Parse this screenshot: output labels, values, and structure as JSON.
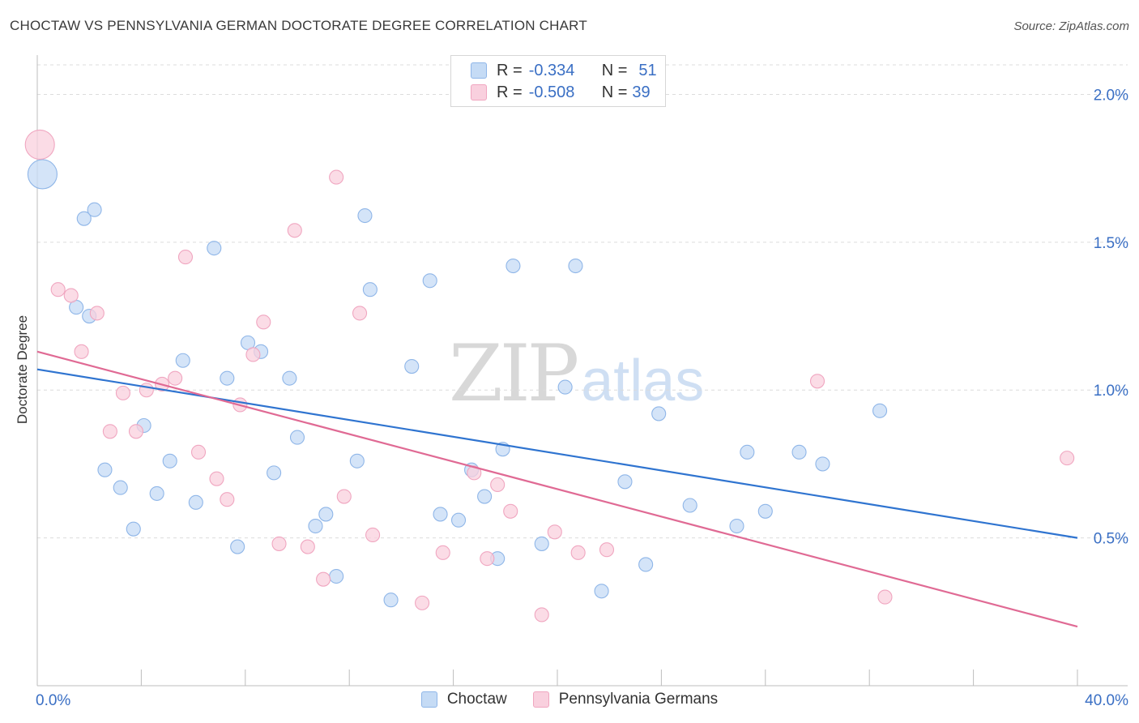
{
  "title": "CHOCTAW VS PENNSYLVANIA GERMAN DOCTORATE DEGREE CORRELATION CHART",
  "source": "Source: ZipAtlas.com",
  "legend": {
    "rows": [
      {
        "r_label": "R =",
        "r_value": "-0.334",
        "n_label": "N =",
        "n_value": "51"
      },
      {
        "r_label": "R =",
        "r_value": "-0.508",
        "n_label": "N =",
        "n_value": "39"
      }
    ]
  },
  "watermark": {
    "zip": "ZIP",
    "atlas": "atlas"
  },
  "chart_data": {
    "type": "scatter",
    "title": "CHOCTAW VS PENNSYLVANIA GERMAN DOCTORATE DEGREE CORRELATION CHART",
    "xlabel": "",
    "ylabel": "Doctorate Degree",
    "xlim": [
      0,
      40
    ],
    "ylim": [
      0,
      2.1
    ],
    "x_tick_labels": [
      "0.0%",
      "40.0%"
    ],
    "y_ticks": [
      0.5,
      1.0,
      1.5,
      2.0
    ],
    "y_tick_labels": [
      "0.5%",
      "1.0%",
      "1.5%",
      "2.0%"
    ],
    "grid": true,
    "series": [
      {
        "name": "Choctaw",
        "color": "#8fb6e8",
        "fill": "#c5dbf5",
        "line_color": "#2f74d0",
        "trend": {
          "x": [
            0,
            40
          ],
          "y": [
            1.07,
            0.5
          ]
        },
        "points": [
          {
            "x": 0.2,
            "y": 1.73,
            "big": true
          },
          {
            "x": 1.8,
            "y": 1.58
          },
          {
            "x": 2.2,
            "y": 1.61
          },
          {
            "x": 1.5,
            "y": 1.28
          },
          {
            "x": 2.0,
            "y": 1.25
          },
          {
            "x": 2.6,
            "y": 0.73
          },
          {
            "x": 3.2,
            "y": 0.67
          },
          {
            "x": 3.7,
            "y": 0.53
          },
          {
            "x": 4.1,
            "y": 0.88
          },
          {
            "x": 4.6,
            "y": 0.65
          },
          {
            "x": 5.1,
            "y": 0.76
          },
          {
            "x": 5.6,
            "y": 1.1
          },
          {
            "x": 6.1,
            "y": 0.62
          },
          {
            "x": 6.8,
            "y": 1.48
          },
          {
            "x": 7.3,
            "y": 1.04
          },
          {
            "x": 7.7,
            "y": 0.47
          },
          {
            "x": 8.1,
            "y": 1.16
          },
          {
            "x": 8.6,
            "y": 1.13
          },
          {
            "x": 9.1,
            "y": 0.72
          },
          {
            "x": 9.7,
            "y": 1.04
          },
          {
            "x": 10.0,
            "y": 0.84
          },
          {
            "x": 10.7,
            "y": 0.54
          },
          {
            "x": 11.1,
            "y": 0.58
          },
          {
            "x": 11.5,
            "y": 0.37
          },
          {
            "x": 12.3,
            "y": 0.76
          },
          {
            "x": 12.6,
            "y": 1.59
          },
          {
            "x": 12.8,
            "y": 1.34
          },
          {
            "x": 13.6,
            "y": 0.29
          },
          {
            "x": 14.4,
            "y": 1.08
          },
          {
            "x": 15.1,
            "y": 1.37
          },
          {
            "x": 15.5,
            "y": 0.58
          },
          {
            "x": 16.2,
            "y": 0.56
          },
          {
            "x": 16.7,
            "y": 0.73
          },
          {
            "x": 17.2,
            "y": 0.64
          },
          {
            "x": 17.7,
            "y": 0.43
          },
          {
            "x": 17.9,
            "y": 0.8
          },
          {
            "x": 18.3,
            "y": 1.42
          },
          {
            "x": 19.4,
            "y": 0.48
          },
          {
            "x": 20.3,
            "y": 1.01
          },
          {
            "x": 20.7,
            "y": 1.42
          },
          {
            "x": 21.7,
            "y": 0.32
          },
          {
            "x": 22.6,
            "y": 0.69
          },
          {
            "x": 23.4,
            "y": 0.41
          },
          {
            "x": 23.9,
            "y": 0.92
          },
          {
            "x": 25.1,
            "y": 0.61
          },
          {
            "x": 26.9,
            "y": 0.54
          },
          {
            "x": 27.3,
            "y": 0.79
          },
          {
            "x": 28.0,
            "y": 0.59
          },
          {
            "x": 29.3,
            "y": 0.79
          },
          {
            "x": 30.2,
            "y": 0.75
          },
          {
            "x": 32.4,
            "y": 0.93
          }
        ]
      },
      {
        "name": "Pennsylvania Germans",
        "color": "#f0a6c0",
        "fill": "#f9d0de",
        "line_color": "#e06a94",
        "trend": {
          "x": [
            0,
            40
          ],
          "y": [
            1.13,
            0.2
          ]
        },
        "points": [
          {
            "x": 0.1,
            "y": 1.83,
            "big": true
          },
          {
            "x": 0.8,
            "y": 1.34
          },
          {
            "x": 1.3,
            "y": 1.32
          },
          {
            "x": 1.7,
            "y": 1.13
          },
          {
            "x": 2.3,
            "y": 1.26
          },
          {
            "x": 2.8,
            "y": 0.86
          },
          {
            "x": 3.3,
            "y": 0.99
          },
          {
            "x": 3.8,
            "y": 0.86
          },
          {
            "x": 4.2,
            "y": 1.0
          },
          {
            "x": 4.8,
            "y": 1.02
          },
          {
            "x": 5.3,
            "y": 1.04
          },
          {
            "x": 5.7,
            "y": 1.45
          },
          {
            "x": 6.2,
            "y": 0.79
          },
          {
            "x": 6.9,
            "y": 0.7
          },
          {
            "x": 7.3,
            "y": 0.63
          },
          {
            "x": 7.8,
            "y": 0.95
          },
          {
            "x": 8.3,
            "y": 1.12
          },
          {
            "x": 8.7,
            "y": 1.23
          },
          {
            "x": 9.3,
            "y": 0.48
          },
          {
            "x": 9.9,
            "y": 1.54
          },
          {
            "x": 10.4,
            "y": 0.47
          },
          {
            "x": 11.0,
            "y": 0.36
          },
          {
            "x": 11.5,
            "y": 1.72
          },
          {
            "x": 11.8,
            "y": 0.64
          },
          {
            "x": 12.4,
            "y": 1.26
          },
          {
            "x": 12.9,
            "y": 0.51
          },
          {
            "x": 14.8,
            "y": 0.28
          },
          {
            "x": 15.6,
            "y": 0.45
          },
          {
            "x": 16.8,
            "y": 0.72
          },
          {
            "x": 17.3,
            "y": 0.43
          },
          {
            "x": 17.7,
            "y": 0.68
          },
          {
            "x": 18.2,
            "y": 0.59
          },
          {
            "x": 19.4,
            "y": 0.24
          },
          {
            "x": 19.9,
            "y": 0.52
          },
          {
            "x": 20.8,
            "y": 0.45
          },
          {
            "x": 21.9,
            "y": 0.46
          },
          {
            "x": 30.0,
            "y": 1.03
          },
          {
            "x": 32.6,
            "y": 0.3
          },
          {
            "x": 39.6,
            "y": 0.77
          }
        ]
      }
    ]
  }
}
